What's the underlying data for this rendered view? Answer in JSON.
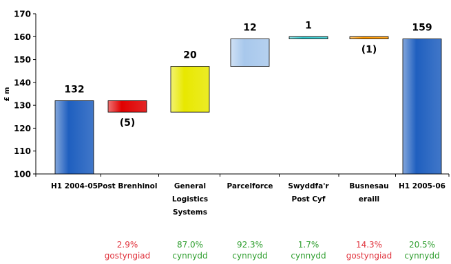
{
  "chart_data": {
    "type": "bar",
    "variant": "waterfall",
    "ylabel": "£ m",
    "ylim": [
      100,
      170
    ],
    "yticks": [
      100,
      110,
      120,
      130,
      140,
      150,
      160,
      170
    ],
    "grid": false,
    "categories": [
      {
        "label_lines": [
          "H1 2004-05"
        ]
      },
      {
        "label_lines": [
          "Post Brenhinol"
        ]
      },
      {
        "label_lines": [
          "General",
          "Logistics",
          "Systems"
        ]
      },
      {
        "label_lines": [
          "Parcelforce"
        ]
      },
      {
        "label_lines": [
          "Swyddfa'r",
          "Post Cyf"
        ]
      },
      {
        "label_lines": [
          "Busnesau",
          "eraill"
        ]
      },
      {
        "label_lines": [
          "H1 2005-06"
        ]
      }
    ],
    "bars": [
      {
        "kind": "total",
        "start": 100,
        "end": 132,
        "value_label": "132",
        "color": "#1f5fbf"
      },
      {
        "kind": "delta",
        "start": 132,
        "end": 127,
        "value_label": "(5)",
        "color": "#e00000"
      },
      {
        "kind": "delta",
        "start": 127,
        "end": 147,
        "value_label": "20",
        "color": "#e8e800"
      },
      {
        "kind": "delta",
        "start": 147,
        "end": 159,
        "value_label": "12",
        "color": "#a8c8ec"
      },
      {
        "kind": "delta",
        "start": 159,
        "end": 160,
        "value_label": "1",
        "color": "#33c8cc"
      },
      {
        "kind": "delta",
        "start": 160,
        "end": 159,
        "value_label": "(1)",
        "color": "#ff9900"
      },
      {
        "kind": "total",
        "start": 100,
        "end": 159,
        "value_label": "159",
        "color": "#1f5fbf"
      }
    ]
  },
  "growth_notes": [
    null,
    {
      "value": "2.9%",
      "text": "gostyngiad",
      "color": "#e0303a"
    },
    {
      "value": "87.0%",
      "text": "cynnydd",
      "color": "#2e9e2e"
    },
    {
      "value": "92.3%",
      "text": "cynnydd",
      "color": "#2e9e2e"
    },
    {
      "value": "1.7%",
      "text": "cynnydd",
      "color": "#2e9e2e"
    },
    {
      "value": "14.3%",
      "text": "gostyngiad",
      "color": "#e0303a"
    },
    {
      "value": "20.5%",
      "text": "cynnydd",
      "color": "#2e9e2e"
    }
  ]
}
